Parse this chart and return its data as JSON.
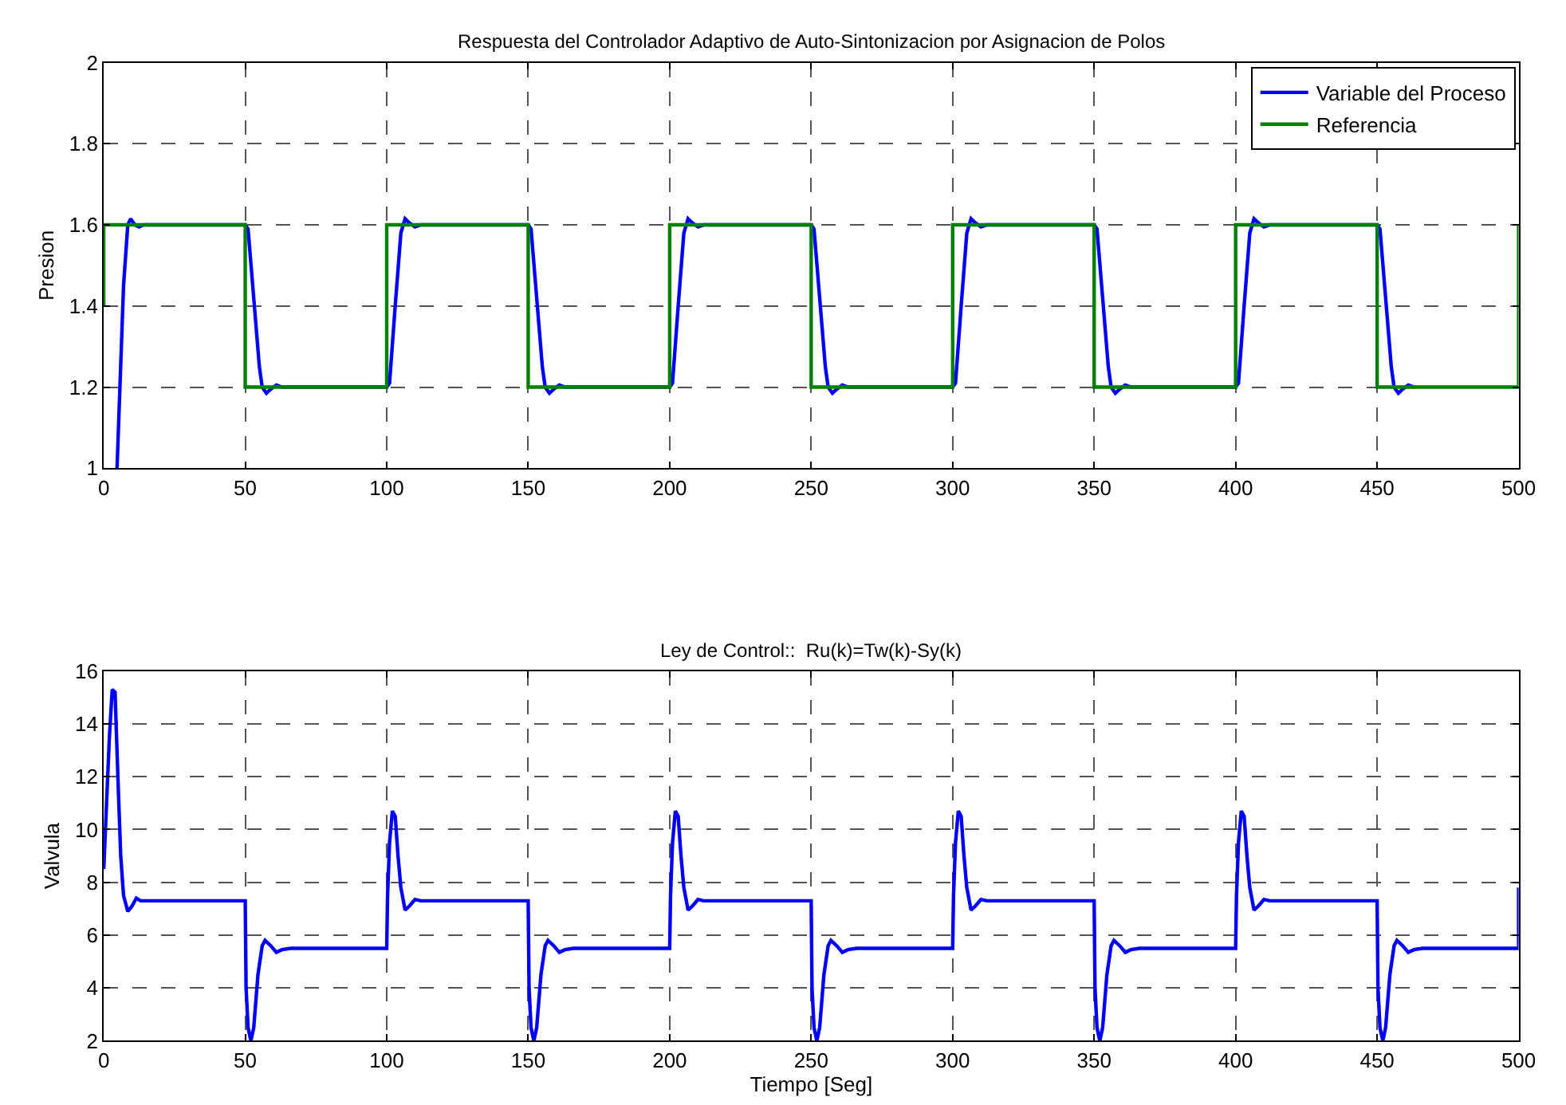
{
  "chart_data": [
    {
      "type": "line",
      "title": "Respuesta del Controlador Adaptivo de Auto-Sintonizacion por Asignacion de Polos",
      "ylabel": "Presion",
      "xlim": [
        0,
        500
      ],
      "xticks": [
        0,
        50,
        100,
        150,
        200,
        250,
        300,
        350,
        400,
        450,
        500
      ],
      "ylim": [
        1,
        2
      ],
      "yticks": [
        1,
        1.2,
        1.4,
        1.6,
        1.8,
        2
      ],
      "grid": true,
      "legend": "top right",
      "line_style": "solid",
      "series": [
        {
          "name": "Variable del Proceso",
          "color": "#0000ff",
          "x": [
            4.7,
            7,
            8.5,
            9.5,
            11,
            12.5,
            14,
            50,
            51,
            53,
            55,
            56,
            57.5,
            59,
            61,
            63,
            100,
            101,
            103,
            105,
            106.5,
            108,
            110,
            112,
            150,
            151,
            153,
            155,
            156,
            157.5,
            159,
            161,
            163,
            200,
            201,
            203,
            205,
            206.5,
            208,
            210,
            212,
            250,
            251,
            253,
            255,
            256,
            257.5,
            259,
            261,
            263,
            300,
            301,
            303,
            305,
            306.5,
            308,
            310,
            312,
            350,
            351,
            353,
            355,
            356,
            357.5,
            359,
            361,
            363,
            400,
            401,
            403,
            405,
            406.5,
            408,
            410,
            412,
            450,
            451,
            453,
            455,
            456,
            457.5,
            459,
            461,
            463
          ],
          "values": [
            1.0,
            1.45,
            1.6,
            1.615,
            1.6,
            1.595,
            1.6,
            1.6,
            1.59,
            1.42,
            1.25,
            1.2,
            1.185,
            1.195,
            1.205,
            1.2,
            1.2,
            1.21,
            1.4,
            1.58,
            1.615,
            1.605,
            1.595,
            1.6,
            1.6,
            1.59,
            1.42,
            1.25,
            1.2,
            1.185,
            1.195,
            1.205,
            1.2,
            1.2,
            1.21,
            1.4,
            1.58,
            1.615,
            1.605,
            1.595,
            1.6,
            1.6,
            1.59,
            1.42,
            1.25,
            1.2,
            1.185,
            1.195,
            1.205,
            1.2,
            1.2,
            1.21,
            1.4,
            1.58,
            1.615,
            1.605,
            1.595,
            1.6,
            1.6,
            1.59,
            1.42,
            1.25,
            1.2,
            1.185,
            1.195,
            1.205,
            1.2,
            1.2,
            1.21,
            1.4,
            1.58,
            1.615,
            1.605,
            1.595,
            1.6,
            1.6,
            1.59,
            1.42,
            1.25,
            1.2,
            1.185,
            1.195,
            1.205,
            1.2
          ]
        },
        {
          "name": "Referencia",
          "color": "#008000",
          "x": [
            0,
            0,
            50,
            50,
            100,
            100,
            150,
            150,
            200,
            200,
            250,
            250,
            300,
            300,
            350,
            350,
            400,
            400,
            450,
            450,
            500,
            500
          ],
          "values": [
            1.4,
            1.6,
            1.6,
            1.2,
            1.2,
            1.6,
            1.6,
            1.2,
            1.2,
            1.6,
            1.6,
            1.2,
            1.2,
            1.6,
            1.6,
            1.2,
            1.2,
            1.6,
            1.6,
            1.2,
            1.2,
            1.6
          ]
        }
      ]
    },
    {
      "type": "line",
      "title": "Ley de Control::  Ru(k)=Tw(k)-Sy(k)",
      "xlabel": "Tiempo [Seg]",
      "ylabel": "Valvula",
      "xlim": [
        0,
        500
      ],
      "xticks": [
        0,
        50,
        100,
        150,
        200,
        250,
        300,
        350,
        400,
        450,
        500
      ],
      "ylim": [
        2,
        16
      ],
      "yticks": [
        2,
        4,
        6,
        8,
        10,
        12,
        14,
        16
      ],
      "grid": true,
      "line_style": "solid",
      "series": [
        {
          "color": "#0000ff",
          "x": [
            0,
            1,
            2,
            3,
            4,
            5,
            6,
            7,
            8.5,
            10,
            11.5,
            13,
            50,
            50.3,
            51,
            52,
            53,
            54.5,
            56,
            57,
            59,
            61,
            63,
            66,
            100,
            100.3,
            101,
            102,
            103,
            104,
            105,
            106.5,
            108,
            110,
            112,
            150,
            150.3,
            151,
            152,
            153,
            154.5,
            156,
            157,
            159,
            161,
            163,
            166,
            200,
            200.3,
            201,
            202,
            203,
            204,
            205,
            206.5,
            208,
            210,
            212,
            250,
            250.3,
            251,
            252,
            253,
            254.5,
            256,
            257,
            259,
            261,
            263,
            266,
            300,
            300.3,
            301,
            302,
            303,
            304,
            305,
            306.5,
            308,
            310,
            312,
            350,
            350.3,
            351,
            352,
            353,
            354.5,
            356,
            357,
            359,
            361,
            363,
            366,
            400,
            400.3,
            401,
            402,
            403,
            404,
            405,
            406.5,
            408,
            410,
            412,
            450,
            450.3,
            451,
            452,
            453,
            454.5,
            456,
            457,
            459,
            461,
            463,
            466,
            500,
            500
          ],
          "values": [
            8.5,
            11,
            13.5,
            15.3,
            15.2,
            12,
            9,
            7.5,
            6.9,
            7.1,
            7.4,
            7.3,
            7.3,
            4,
            2.5,
            2,
            2.5,
            4.5,
            5.6,
            5.8,
            5.6,
            5.35,
            5.45,
            5.5,
            5.5,
            7.5,
            9.5,
            10.7,
            10.5,
            9,
            7.8,
            6.95,
            7.1,
            7.35,
            7.3,
            7.3,
            4,
            2.5,
            2,
            2.5,
            4.5,
            5.6,
            5.8,
            5.6,
            5.35,
            5.45,
            5.5,
            5.5,
            7.5,
            9.5,
            10.7,
            10.5,
            9,
            7.8,
            6.95,
            7.1,
            7.35,
            7.3,
            7.3,
            4,
            2.5,
            2,
            2.5,
            4.5,
            5.6,
            5.8,
            5.6,
            5.35,
            5.45,
            5.5,
            5.5,
            7.5,
            9.5,
            10.7,
            10.5,
            9,
            7.8,
            6.95,
            7.1,
            7.35,
            7.3,
            7.3,
            4,
            2.5,
            2,
            2.5,
            4.5,
            5.6,
            5.8,
            5.6,
            5.35,
            5.45,
            5.5,
            5.5,
            7.5,
            9.5,
            10.7,
            10.5,
            9,
            7.8,
            6.95,
            7.1,
            7.35,
            7.3,
            7.3,
            4,
            2.5,
            2,
            2.5,
            4.5,
            5.6,
            5.8,
            5.6,
            5.35,
            5.45,
            5.5,
            5.5,
            7.8
          ]
        }
      ]
    }
  ]
}
